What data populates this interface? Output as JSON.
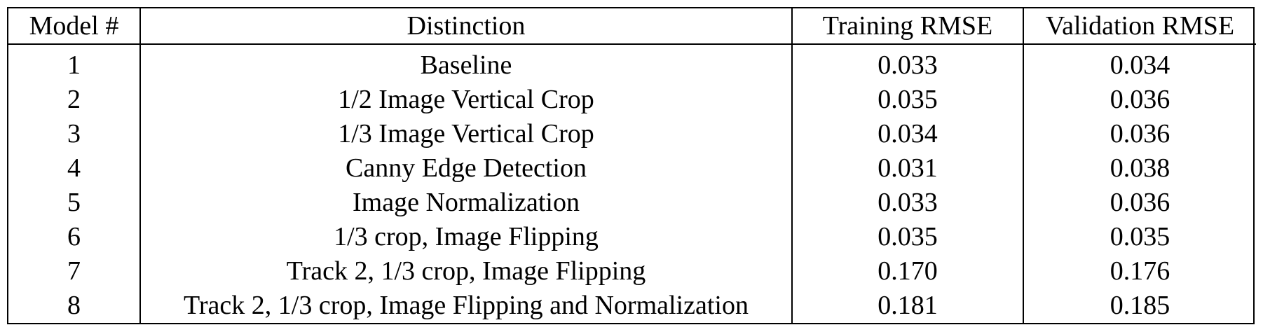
{
  "table": {
    "headers": [
      "Model #",
      "Distinction",
      "Training RMSE",
      "Validation RMSE"
    ],
    "rows": [
      [
        "1",
        "Baseline",
        "0.033",
        "0.034"
      ],
      [
        "2",
        "1/2 Image Vertical Crop",
        "0.035",
        "0.036"
      ],
      [
        "3",
        "1/3 Image Vertical Crop",
        "0.034",
        "0.036"
      ],
      [
        "4",
        "Canny Edge Detection",
        "0.031",
        "0.038"
      ],
      [
        "5",
        "Image Normalization",
        "0.033",
        "0.036"
      ],
      [
        "6",
        "1/3 crop, Image Flipping",
        "0.035",
        "0.035"
      ],
      [
        "7",
        "Track 2, 1/3 crop, Image Flipping",
        "0.170",
        "0.176"
      ],
      [
        "8",
        "Track 2, 1/3 crop, Image Flipping and Normalization",
        "0.181",
        "0.185"
      ]
    ]
  }
}
